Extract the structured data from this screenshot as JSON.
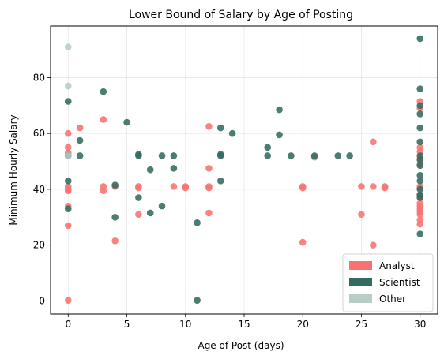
{
  "chart_data": {
    "type": "scatter",
    "title": "Lower Bound of Salary by Age of Posting",
    "xlabel": "Age of Post (days)",
    "ylabel": "Minimum Hourly Salary",
    "xlim": [
      -1.5,
      31.5
    ],
    "ylim": [
      -4.7,
      98.5
    ],
    "xticks": [
      0,
      5,
      10,
      15,
      20,
      25,
      30
    ],
    "yticks": [
      0,
      20,
      40,
      60,
      80
    ],
    "grid": true,
    "legend_position": "bottom-right",
    "series": [
      {
        "name": "Analyst",
        "color": "#f87272",
        "points": [
          [
            0,
            60
          ],
          [
            0,
            55
          ],
          [
            0,
            53
          ],
          [
            0,
            52
          ],
          [
            0,
            41
          ],
          [
            0,
            40
          ],
          [
            0,
            39.5
          ],
          [
            0,
            34
          ],
          [
            0,
            27
          ],
          [
            0,
            0.2
          ],
          [
            1,
            62
          ],
          [
            3,
            65
          ],
          [
            3,
            41
          ],
          [
            3,
            39.5
          ],
          [
            4,
            41
          ],
          [
            4,
            21.5
          ],
          [
            6,
            41
          ],
          [
            6,
            40.5
          ],
          [
            6,
            31
          ],
          [
            9,
            41
          ],
          [
            10,
            41
          ],
          [
            10,
            40.5
          ],
          [
            12,
            62.5
          ],
          [
            12,
            47.5
          ],
          [
            12,
            41
          ],
          [
            12,
            40.5
          ],
          [
            12,
            31.5
          ],
          [
            20,
            41
          ],
          [
            20,
            40.5
          ],
          [
            20,
            21
          ],
          [
            21,
            51.5
          ],
          [
            25,
            41
          ],
          [
            25,
            31
          ],
          [
            26,
            57
          ],
          [
            26,
            41
          ],
          [
            26,
            20
          ],
          [
            27,
            41
          ],
          [
            27,
            40.5
          ],
          [
            30,
            71.5
          ],
          [
            30,
            69
          ],
          [
            30,
            55
          ],
          [
            30,
            53.5
          ],
          [
            30,
            51
          ],
          [
            30,
            49
          ],
          [
            30,
            41
          ],
          [
            30,
            40.5
          ],
          [
            30,
            38
          ],
          [
            30,
            37
          ],
          [
            30,
            35
          ],
          [
            30,
            34
          ],
          [
            30,
            33
          ],
          [
            30,
            32
          ],
          [
            30,
            31
          ],
          [
            30,
            29
          ],
          [
            30,
            27.5
          ]
        ]
      },
      {
        "name": "Scientist",
        "color": "#326b60",
        "points": [
          [
            0,
            71.5
          ],
          [
            0,
            52
          ],
          [
            0,
            43
          ],
          [
            0,
            33
          ],
          [
            1,
            57.5
          ],
          [
            1,
            52
          ],
          [
            3,
            75
          ],
          [
            4,
            41.5
          ],
          [
            4,
            30
          ],
          [
            5,
            64
          ],
          [
            6,
            52
          ],
          [
            6,
            52.5
          ],
          [
            6,
            37
          ],
          [
            7,
            47
          ],
          [
            7,
            31.5
          ],
          [
            8,
            52
          ],
          [
            8,
            34
          ],
          [
            9,
            52
          ],
          [
            9,
            47.5
          ],
          [
            11,
            28
          ],
          [
            11,
            0.2
          ],
          [
            13,
            62
          ],
          [
            13,
            52
          ],
          [
            13,
            52.5
          ],
          [
            13,
            43
          ],
          [
            14,
            60
          ],
          [
            17,
            55
          ],
          [
            17,
            52
          ],
          [
            18,
            68.5
          ],
          [
            18,
            59.5
          ],
          [
            19,
            52
          ],
          [
            21,
            52
          ],
          [
            23,
            52
          ],
          [
            24,
            52
          ],
          [
            30,
            94
          ],
          [
            30,
            76
          ],
          [
            30,
            70
          ],
          [
            30,
            67
          ],
          [
            30,
            62
          ],
          [
            30,
            57
          ],
          [
            30,
            52
          ],
          [
            30,
            50.5
          ],
          [
            30,
            48.5
          ],
          [
            30,
            45
          ],
          [
            30,
            43
          ],
          [
            30,
            40
          ],
          [
            30,
            38
          ],
          [
            30,
            37
          ],
          [
            30,
            24
          ]
        ]
      },
      {
        "name": "Other",
        "color": "#b7cdc6",
        "points": [
          [
            0,
            91
          ],
          [
            0,
            77
          ],
          [
            0,
            52
          ]
        ]
      }
    ]
  }
}
